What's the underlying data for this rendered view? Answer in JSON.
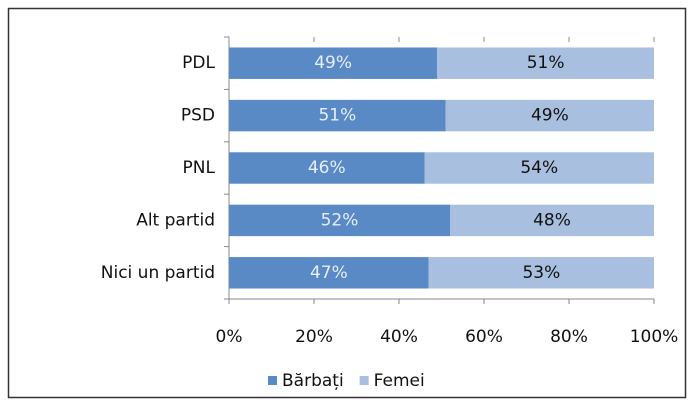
{
  "chart_data": {
    "type": "stacked-bar-horizontal",
    "categories": [
      "PDL",
      "PSD",
      "PNL",
      "Alt partid",
      "Nici un partid"
    ],
    "series": [
      {
        "name": "Bărbați",
        "color": "#5a8ac6",
        "values": [
          49,
          51,
          46,
          52,
          47
        ],
        "value_labels": [
          "49%",
          "51%",
          "46%",
          "52%",
          "47%"
        ]
      },
      {
        "name": "Femei",
        "color": "#a8bfe0",
        "values": [
          51,
          49,
          54,
          48,
          53
        ],
        "value_labels": [
          "51%",
          "49%",
          "54%",
          "48%",
          "53%"
        ]
      }
    ],
    "xlim": [
      0,
      100
    ],
    "xticks": [
      {
        "value": 0,
        "label": "0%"
      },
      {
        "value": 20,
        "label": "20%"
      },
      {
        "value": 40,
        "label": "40%"
      },
      {
        "value": 60,
        "label": "60%"
      },
      {
        "value": 80,
        "label": "80%"
      },
      {
        "value": 100,
        "label": "100%"
      }
    ],
    "legend": "bottom"
  }
}
